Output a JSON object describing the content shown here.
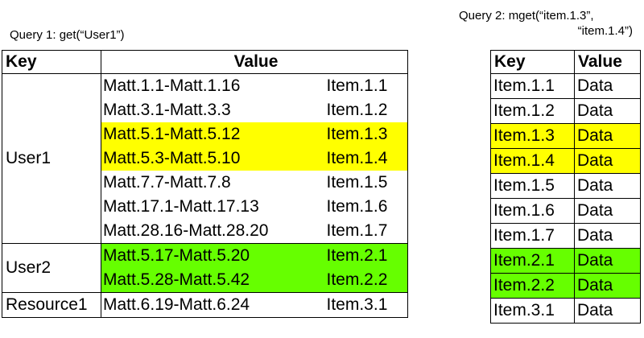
{
  "query1": {
    "caption": "Query 1: get(“User1”)"
  },
  "query2": {
    "caption_line1": "Query 2: mget(“item.1.3”,",
    "caption_line2": "“item.1.4”)"
  },
  "left_table": {
    "headers": {
      "key": "Key",
      "value": "Value"
    },
    "groups": [
      {
        "key": "User1",
        "rows": [
          {
            "span": "Matt.1.1-Matt.1.16",
            "item": "Item.1.1",
            "highlight": ""
          },
          {
            "span": "Matt.3.1-Matt.3.3",
            "item": "Item.1.2",
            "highlight": ""
          },
          {
            "span": "Matt.5.1-Matt.5.12",
            "item": "Item.1.3",
            "highlight": "yellow"
          },
          {
            "span": "Matt.5.3-Matt.5.10",
            "item": "Item.1.4",
            "highlight": "yellow"
          },
          {
            "span": "Matt.7.7-Matt.7.8",
            "item": "Item.1.5",
            "highlight": ""
          },
          {
            "span": "Matt.17.1-Matt.17.13",
            "item": "Item.1.6",
            "highlight": ""
          },
          {
            "span": "Matt.28.16-Matt.28.20",
            "item": "Item.1.7",
            "highlight": ""
          }
        ]
      },
      {
        "key": "User2",
        "rows": [
          {
            "span": "Matt.5.17-Matt.5.20",
            "item": "Item.2.1",
            "highlight": "green"
          },
          {
            "span": "Matt.5.28-Matt.5.42",
            "item": "Item.2.2",
            "highlight": "green"
          }
        ]
      },
      {
        "key": "Resource1",
        "rows": [
          {
            "span": "Matt.6.19-Matt.6.24",
            "item": "Item.3.1",
            "highlight": ""
          }
        ]
      }
    ]
  },
  "right_table": {
    "headers": {
      "key": "Key",
      "value": "Value"
    },
    "rows": [
      {
        "key": "Item.1.1",
        "value": "Data",
        "highlight": ""
      },
      {
        "key": "Item.1.2",
        "value": "Data",
        "highlight": ""
      },
      {
        "key": "Item.1.3",
        "value": "Data",
        "highlight": "yellow"
      },
      {
        "key": "Item.1.4",
        "value": "Data",
        "highlight": "yellow"
      },
      {
        "key": "Item.1.5",
        "value": "Data",
        "highlight": ""
      },
      {
        "key": "Item.1.6",
        "value": "Data",
        "highlight": ""
      },
      {
        "key": "Item.1.7",
        "value": "Data",
        "highlight": ""
      },
      {
        "key": "Item.2.1",
        "value": "Data",
        "highlight": "green"
      },
      {
        "key": "Item.2.2",
        "value": "Data",
        "highlight": "green"
      },
      {
        "key": "Item.3.1",
        "value": "Data",
        "highlight": ""
      }
    ]
  },
  "colors": {
    "yellow": "#ffff00",
    "green": "#66ff00"
  }
}
